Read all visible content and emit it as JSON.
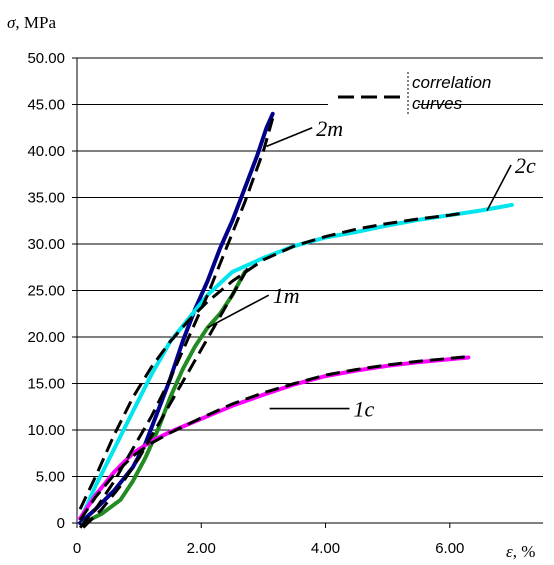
{
  "chart_data": {
    "type": "line",
    "title": "",
    "ylabel_symbol": "σ",
    "ylabel_unit": ", MPa",
    "xlabel_symbol": "ε",
    "xlabel_unit": ", %",
    "xlim": [
      0,
      7.5
    ],
    "ylim": [
      0,
      50
    ],
    "x_ticks": [
      {
        "value": 0,
        "label": "0"
      },
      {
        "value": 2,
        "label": "2.00"
      },
      {
        "value": 4,
        "label": "4.00"
      },
      {
        "value": 6,
        "label": "6.00"
      }
    ],
    "y_ticks": [
      {
        "value": 0,
        "label": "0"
      },
      {
        "value": 5,
        "label": "5.00"
      },
      {
        "value": 10,
        "label": "10.00"
      },
      {
        "value": 15,
        "label": "15.00"
      },
      {
        "value": 20,
        "label": "20.00"
      },
      {
        "value": 25,
        "label": "25.00"
      },
      {
        "value": 30,
        "label": "30.00"
      },
      {
        "value": 35,
        "label": "35.00"
      },
      {
        "value": 40,
        "label": "40.00"
      },
      {
        "value": 45,
        "label": "45.00"
      },
      {
        "value": 50,
        "label": "50.00"
      }
    ],
    "grid": "horizontal",
    "legend": {
      "entries": [
        {
          "name_lines": [
            "correlation",
            "curves"
          ],
          "style": "dashed",
          "color": "#000000"
        }
      ],
      "placement": "top-right"
    },
    "series": [
      {
        "name": "2m",
        "color": "#00008b",
        "x": [
          0.05,
          0.3,
          0.6,
          0.9,
          1.1,
          1.3,
          1.5,
          1.7,
          1.9,
          2.1,
          2.3,
          2.5,
          2.7,
          2.9,
          3.05,
          3.15
        ],
        "y": [
          0,
          1.5,
          3.5,
          6,
          8.5,
          12,
          15.5,
          19.5,
          23,
          26,
          29.5,
          32.5,
          36,
          39.5,
          42.5,
          44
        ]
      },
      {
        "name": "2c",
        "color": "#00e5ee",
        "x": [
          0.1,
          0.3,
          0.6,
          0.9,
          1.2,
          1.5,
          1.8,
          2.1,
          2.5,
          3.0,
          3.5,
          4.0,
          4.5,
          5.0,
          5.5,
          6.0,
          6.5,
          7.0
        ],
        "y": [
          1,
          4,
          8,
          12,
          16,
          19.5,
          22,
          24.5,
          27,
          28.5,
          29.8,
          30.7,
          31.3,
          32,
          32.6,
          33.1,
          33.6,
          34.2
        ]
      },
      {
        "name": "1m",
        "color": "#228b22",
        "x": [
          0.1,
          0.4,
          0.7,
          0.9,
          1.1,
          1.3,
          1.5,
          1.7,
          1.9,
          2.1,
          2.3,
          2.5,
          2.7
        ],
        "y": [
          0,
          1,
          2.5,
          4.5,
          7,
          10,
          13.5,
          16.5,
          19,
          21,
          22.5,
          24.5,
          27
        ]
      },
      {
        "name": "1c",
        "color": "#ff00ff",
        "x": [
          0.05,
          0.3,
          0.6,
          0.9,
          1.2,
          1.5,
          2.0,
          2.5,
          3.0,
          3.5,
          4.0,
          4.5,
          5.0,
          5.5,
          6.0,
          6.3
        ],
        "y": [
          0.5,
          3,
          5.5,
          7.5,
          8.8,
          9.8,
          11.2,
          12.6,
          13.8,
          14.9,
          15.8,
          16.4,
          16.9,
          17.3,
          17.6,
          17.8
        ]
      }
    ],
    "correlation_curves": [
      {
        "x": [
          0.05,
          0.3,
          0.6,
          0.9,
          1.2,
          1.5,
          1.8,
          2.1,
          2.4,
          2.7,
          3.0,
          3.15
        ],
        "y": [
          -0.5,
          1.5,
          4.5,
          8,
          11.5,
          15.5,
          20,
          24.5,
          29.5,
          34.5,
          40,
          43.5
        ]
      },
      {
        "x": [
          0.05,
          0.3,
          0.6,
          0.9,
          1.2,
          1.5,
          1.8,
          2.1,
          2.5,
          3.0,
          3.5,
          4.0,
          4.5,
          5.0,
          5.5,
          6.0,
          6.2
        ],
        "y": [
          1.5,
          5,
          9.5,
          13.5,
          16.8,
          19.5,
          21.8,
          23.8,
          26,
          28.3,
          29.8,
          30.8,
          31.6,
          32.2,
          32.7,
          33.1,
          33.3
        ]
      },
      {
        "x": [
          0.1,
          0.4,
          0.7,
          1.0,
          1.3,
          1.6,
          1.9,
          2.2,
          2.5,
          2.8
        ],
        "y": [
          -0.5,
          1.5,
          4,
          7,
          10.5,
          14,
          17.5,
          21,
          24.5,
          28
        ]
      },
      {
        "x": [
          0.05,
          0.3,
          0.6,
          0.9,
          1.2,
          1.5,
          2.0,
          2.5,
          3.0,
          3.5,
          4.0,
          4.5,
          5.0,
          5.5,
          6.0,
          6.3
        ],
        "y": [
          0.3,
          2.8,
          5.2,
          7.2,
          8.6,
          9.7,
          11.3,
          12.8,
          14.0,
          15.0,
          15.9,
          16.5,
          17.0,
          17.4,
          17.7,
          17.9
        ]
      }
    ],
    "annotations": [
      {
        "text": "2m",
        "target_x": 3.05,
        "target_y": 40.5,
        "text_x": 3.85,
        "text_y": 42.5
      },
      {
        "text": "2c",
        "target_x": 6.6,
        "target_y": 33.6,
        "text_x": 7.05,
        "text_y": 38.5
      },
      {
        "text": "1m",
        "target_x": 2.1,
        "target_y": 21.0,
        "text_x": 3.15,
        "text_y": 24.5
      },
      {
        "text": "1c",
        "target_x": 3.1,
        "target_y": 12.3,
        "text_x": 4.45,
        "text_y": 12.3
      }
    ]
  }
}
